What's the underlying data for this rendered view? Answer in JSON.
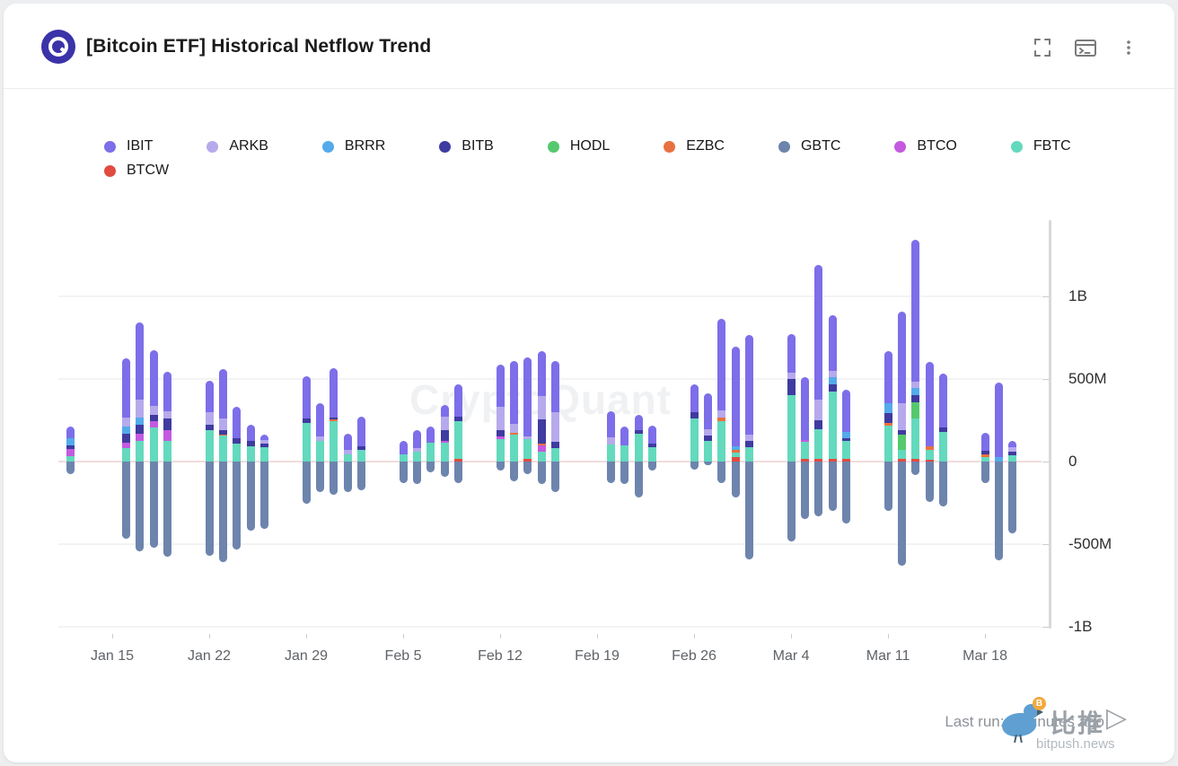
{
  "header": {
    "title": "[Bitcoin ETF] Historical Netflow Trend",
    "logo": "CryptoQuant",
    "toolbar": {
      "fullscreen": "fullscreen",
      "console": "console",
      "menu": "more-options"
    }
  },
  "footer": {
    "last_run": "Last run: 3 minutes ago"
  },
  "watermark": {
    "brand": "CryptoQuant",
    "cn": "比推",
    "arrow": "▷",
    "site": "bitpush.news",
    "coin": "B"
  },
  "chart_data": {
    "type": "bar",
    "subtype": "stacked_diverging_daily",
    "title": "[Bitcoin ETF] Historical Netflow Trend",
    "unit": "USD netflow, millions",
    "grid": "horizontal",
    "legend_position": "top",
    "series": [
      {
        "name": "IBIT",
        "color": "#7d6ee9"
      },
      {
        "name": "ARKB",
        "color": "#b6aaec"
      },
      {
        "name": "BRRR",
        "color": "#54aaea"
      },
      {
        "name": "BITB",
        "color": "#3f3ba0"
      },
      {
        "name": "HODL",
        "color": "#55c96d"
      },
      {
        "name": "EZBC",
        "color": "#e8723f"
      },
      {
        "name": "GBTC",
        "color": "#6d84ad"
      },
      {
        "name": "BTCO",
        "color": "#c45ae0"
      },
      {
        "name": "FBTC",
        "color": "#63d9bd"
      },
      {
        "name": "BTCW",
        "color": "#e14b3f"
      }
    ],
    "stack_order_bottom_to_top": [
      "BTCW",
      "FBTC",
      "BTCO",
      "EZBC",
      "HODL",
      "BITB",
      "BRRR",
      "ARKB",
      "IBIT"
    ],
    "y_axis": {
      "side": "right",
      "ticks": [
        {
          "label": "1B",
          "value": 1000
        },
        {
          "label": "500M",
          "value": 500
        },
        {
          "label": "0",
          "value": 0
        },
        {
          "label": "-500M",
          "value": -500
        },
        {
          "label": "-1B",
          "value": -1000
        }
      ],
      "range": [
        -1100,
        1500
      ]
    },
    "x_axis": {
      "ticks": [
        {
          "label": "Jan 15",
          "d": 0
        },
        {
          "label": "Jan 22",
          "d": 7
        },
        {
          "label": "Jan 29",
          "d": 14
        },
        {
          "label": "Feb 5",
          "d": 21
        },
        {
          "label": "Feb 12",
          "d": 28
        },
        {
          "label": "Feb 19",
          "d": 35
        },
        {
          "label": "Feb 26",
          "d": 42
        },
        {
          "label": "Mar 4",
          "d": 49
        },
        {
          "label": "Mar 11",
          "d": 56
        },
        {
          "label": "Mar 18",
          "d": 63
        }
      ]
    },
    "bars": [
      {
        "date": "Jan 12",
        "d": -3,
        "flows_m": {
          "IBIT": 70,
          "BRRR": 40,
          "BITB": 25,
          "BTCO": 40,
          "FBTC": 35,
          "GBTC": -75
        }
      },
      {
        "date": "Jan 16",
        "d": 1,
        "flows_m": {
          "IBIT": 360,
          "ARKB": 55,
          "BRRR": 40,
          "BITB": 55,
          "BTCO": 35,
          "FBTC": 80,
          "GBTC": -465
        }
      },
      {
        "date": "Jan 17",
        "d": 2,
        "flows_m": {
          "IBIT": 465,
          "ARKB": 110,
          "BRRR": 40,
          "BITB": 55,
          "BTCO": 45,
          "FBTC": 125,
          "GBTC": -545
        }
      },
      {
        "date": "Jan 18",
        "d": 3,
        "flows_m": {
          "IBIT": 340,
          "ARKB": 55,
          "BITB": 35,
          "BTCO": 40,
          "FBTC": 205,
          "GBTC": -520
        }
      },
      {
        "date": "Jan 19",
        "d": 4,
        "flows_m": {
          "IBIT": 240,
          "ARKB": 45,
          "BITB": 70,
          "BTCO": 65,
          "FBTC": 125,
          "GBTC": -575
        }
      },
      {
        "date": "Jan 22",
        "d": 7,
        "flows_m": {
          "IBIT": 190,
          "ARKB": 75,
          "BITB": 35,
          "FBTC": 190,
          "GBTC": -570
        }
      },
      {
        "date": "Jan 23",
        "d": 8,
        "flows_m": {
          "IBIT": 300,
          "ARKB": 70,
          "BITB": 25,
          "EZBC": 10,
          "FBTC": 155,
          "GBTC": -610
        }
      },
      {
        "date": "Jan 24",
        "d": 9,
        "flows_m": {
          "IBIT": 190,
          "BITB": 30,
          "FBTC": 110,
          "GBTC": -530
        }
      },
      {
        "date": "Jan 25",
        "d": 10,
        "flows_m": {
          "IBIT": 100,
          "BITB": 30,
          "FBTC": 95,
          "GBTC": -420
        }
      },
      {
        "date": "Jan 26",
        "d": 11,
        "flows_m": {
          "IBIT": 35,
          "ARKB": 20,
          "BITB": 25,
          "FBTC": 85,
          "GBTC": -405
        }
      },
      {
        "date": "Jan 29",
        "d": 14,
        "flows_m": {
          "IBIT": 255,
          "BITB": 25,
          "FBTC": 235,
          "GBTC": -255
        }
      },
      {
        "date": "Jan 30",
        "d": 15,
        "flows_m": {
          "IBIT": 205,
          "ARKB": 25,
          "FBTC": 125,
          "GBTC": -185
        }
      },
      {
        "date": "Jan 31",
        "d": 16,
        "flows_m": {
          "IBIT": 300,
          "BITB": 10,
          "EZBC": 10,
          "FBTC": 245,
          "GBTC": -200
        }
      },
      {
        "date": "Feb 1",
        "d": 17,
        "flows_m": {
          "IBIT": 100,
          "ARKB": 25,
          "FBTC": 45,
          "GBTC": -185
        }
      },
      {
        "date": "Feb 2",
        "d": 18,
        "flows_m": {
          "IBIT": 175,
          "BITB": 25,
          "FBTC": 70,
          "GBTC": -175
        }
      },
      {
        "date": "Feb 5",
        "d": 21,
        "flows_m": {
          "IBIT": 80,
          "FBTC": 45,
          "GBTC": -130
        }
      },
      {
        "date": "Feb 6",
        "d": 22,
        "flows_m": {
          "IBIT": 110,
          "ARKB": 20,
          "FBTC": 60,
          "GBTC": -135
        }
      },
      {
        "date": "Feb 7",
        "d": 23,
        "flows_m": {
          "IBIT": 95,
          "FBTC": 115,
          "GBTC": -65
        }
      },
      {
        "date": "Feb 8",
        "d": 24,
        "flows_m": {
          "IBIT": 70,
          "ARKB": 80,
          "BITB": 65,
          "BTCO": 10,
          "FBTC": 115,
          "GBTC": -95
        }
      },
      {
        "date": "Feb 9",
        "d": 25,
        "flows_m": {
          "IBIT": 195,
          "BITB": 25,
          "FBTC": 230,
          "BTCW": 15,
          "GBTC": -130
        }
      },
      {
        "date": "Feb 12",
        "d": 28,
        "flows_m": {
          "IBIT": 255,
          "ARKB": 140,
          "BITB": 40,
          "BTCO": 15,
          "FBTC": 135,
          "GBTC": -55
        }
      },
      {
        "date": "Feb 13",
        "d": 29,
        "flows_m": {
          "IBIT": 380,
          "ARKB": 55,
          "EZBC": 10,
          "FBTC": 165,
          "GBTC": -120
        }
      },
      {
        "date": "Feb 14",
        "d": 30,
        "flows_m": {
          "IBIT": 480,
          "ARKB": 15,
          "FBTC": 120,
          "BTCW": 15,
          "GBTC": -75
        }
      },
      {
        "date": "Feb 15",
        "d": 31,
        "flows_m": {
          "IBIT": 275,
          "ARKB": 140,
          "BITB": 145,
          "EZBC": 10,
          "BTCO": 40,
          "FBTC": 60,
          "GBTC": -135
        }
      },
      {
        "date": "Feb 16",
        "d": 32,
        "flows_m": {
          "IBIT": 310,
          "ARKB": 180,
          "BITB": 40,
          "FBTC": 80,
          "GBTC": -185
        }
      },
      {
        "date": "Feb 20",
        "d": 36,
        "flows_m": {
          "IBIT": 160,
          "ARKB": 40,
          "FBTC": 105,
          "GBTC": -130
        }
      },
      {
        "date": "Feb 21",
        "d": 37,
        "flows_m": {
          "IBIT": 110,
          "FBTC": 100,
          "GBTC": -135
        }
      },
      {
        "date": "Feb 22",
        "d": 38,
        "flows_m": {
          "IBIT": 90,
          "BITB": 20,
          "FBTC": 170,
          "GBTC": -215
        }
      },
      {
        "date": "Feb 23",
        "d": 39,
        "flows_m": {
          "IBIT": 110,
          "BITB": 25,
          "FBTC": 85,
          "GBTC": -55
        }
      },
      {
        "date": "Feb 26",
        "d": 42,
        "flows_m": {
          "IBIT": 170,
          "BITB": 40,
          "FBTC": 260,
          "GBTC": -50
        }
      },
      {
        "date": "Feb 27",
        "d": 43,
        "flows_m": {
          "IBIT": 220,
          "ARKB": 40,
          "BITB": 30,
          "FBTC": 125,
          "GBTC": -20
        }
      },
      {
        "date": "Feb 28",
        "d": 44,
        "flows_m": {
          "IBIT": 555,
          "ARKB": 45,
          "EZBC": 20,
          "FBTC": 245,
          "GBTC": -130
        }
      },
      {
        "date": "Feb 29",
        "d": 45,
        "flows_m": {
          "IBIT": 600,
          "BRRR": 25,
          "EZBC": 15,
          "FBTC": 30,
          "BTCW": 25,
          "GBTC": -220
        }
      },
      {
        "date": "Mar 1",
        "d": 46,
        "flows_m": {
          "IBIT": 600,
          "ARKB": 40,
          "BITB": 40,
          "FBTC": 85,
          "GBTC": -595
        }
      },
      {
        "date": "Mar 4",
        "d": 49,
        "flows_m": {
          "IBIT": 230,
          "ARKB": 40,
          "BITB": 100,
          "FBTC": 400,
          "GBTC": -485
        }
      },
      {
        "date": "Mar 5",
        "d": 50,
        "flows_m": {
          "IBIT": 380,
          "BTCO": 10,
          "FBTC": 105,
          "BTCW": 15,
          "GBTC": -350
        }
      },
      {
        "date": "Mar 6",
        "d": 51,
        "flows_m": {
          "IBIT": 815,
          "ARKB": 125,
          "BITB": 55,
          "FBTC": 180,
          "BTCW": 15,
          "GBTC": -330
        }
      },
      {
        "date": "Mar 7",
        "d": 52,
        "flows_m": {
          "IBIT": 335,
          "ARKB": 40,
          "BRRR": 45,
          "BITB": 40,
          "FBTC": 410,
          "BTCW": 15,
          "GBTC": -300
        }
      },
      {
        "date": "Mar 8",
        "d": 53,
        "flows_m": {
          "IBIT": 255,
          "BRRR": 40,
          "BITB": 15,
          "FBTC": 110,
          "BTCW": 15,
          "GBTC": -375
        }
      },
      {
        "date": "Mar 11",
        "d": 56,
        "flows_m": {
          "IBIT": 315,
          "BRRR": 60,
          "BITB": 60,
          "EZBC": 15,
          "FBTC": 220,
          "GBTC": -300
        }
      },
      {
        "date": "Mar 12",
        "d": 57,
        "flows_m": {
          "IBIT": 550,
          "ARKB": 165,
          "BITB": 25,
          "HODL": 95,
          "FBTC": 55,
          "BTCW": 15,
          "GBTC": -630
        }
      },
      {
        "date": "Mar 13",
        "d": 58,
        "flows_m": {
          "IBIT": 855,
          "ARKB": 40,
          "BRRR": 45,
          "BITB": 40,
          "HODL": 100,
          "FBTC": 245,
          "BTCW": 15,
          "GBTC": -80
        }
      },
      {
        "date": "Mar 14",
        "d": 59,
        "flows_m": {
          "IBIT": 510,
          "EZBC": 25,
          "FBTC": 60,
          "BTCW": 10,
          "GBTC": -245
        }
      },
      {
        "date": "Mar 15",
        "d": 60,
        "flows_m": {
          "IBIT": 330,
          "BITB": 25,
          "FBTC": 180,
          "GBTC": -270
        }
      },
      {
        "date": "Mar 18",
        "d": 63,
        "flows_m": {
          "IBIT": 110,
          "BITB": 20,
          "EZBC": 20,
          "FBTC": 25,
          "GBTC": -130
        }
      },
      {
        "date": "Mar 19",
        "d": 64,
        "flows_m": {
          "IBIT": 455,
          "BRRR": 25,
          "GBTC": -600
        }
      },
      {
        "date": "Mar 20",
        "d": 65,
        "flows_m": {
          "IBIT": 40,
          "ARKB": 25,
          "BITB": 20,
          "FBTC": 40,
          "GBTC": -435
        }
      }
    ]
  }
}
